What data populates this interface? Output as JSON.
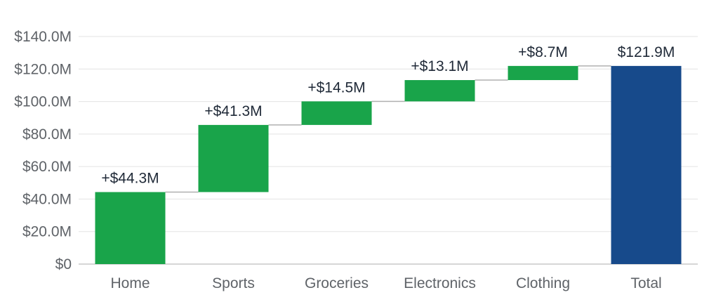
{
  "chart_data": {
    "type": "waterfall",
    "categories": [
      "Home",
      "Sports",
      "Groceries",
      "Electronics",
      "Clothing",
      "Total"
    ],
    "values": [
      44.3,
      41.3,
      14.5,
      13.1,
      8.7,
      121.9
    ],
    "is_total": [
      false,
      false,
      false,
      false,
      false,
      true
    ],
    "data_labels": [
      "+$44.3M",
      "+$41.3M",
      "+$14.5M",
      "+$13.1M",
      "+$8.7M",
      "$121.9M"
    ],
    "ylim": [
      0,
      140
    ],
    "yticks": [
      0,
      20,
      40,
      60,
      80,
      100,
      120,
      140
    ],
    "ytick_labels": [
      "$0",
      "$20.0M",
      "$40.0M",
      "$60.0M",
      "$80.0M",
      "$100.0M",
      "$120.0M",
      "$140.0M"
    ],
    "grid": true,
    "colors": {
      "increase": "#19a44a",
      "total": "#174a8b",
      "connector": "#b0b0b0",
      "grid": "#e3e3e3",
      "axis": "#c8c8c8"
    }
  }
}
